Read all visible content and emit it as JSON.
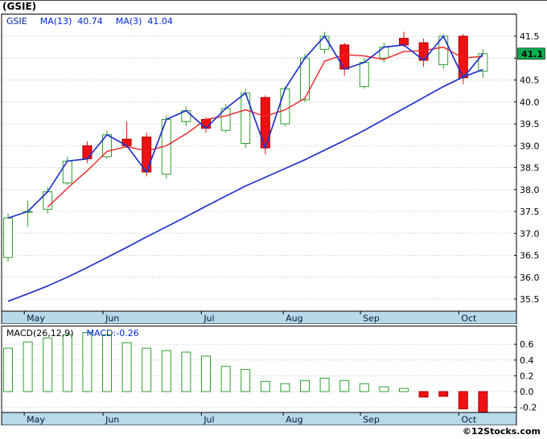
{
  "title": "(GSIE)",
  "legend": {
    "symbol": "GSIE",
    "ma13": "MA(13)  40.74",
    "ma3": "MA(3)  41.04"
  },
  "price_tag": {
    "value": "41.1"
  },
  "macd": {
    "label": "MACD(26,12,9)",
    "value": "MACD:-0.26"
  },
  "watermark": "©12Stocks.com",
  "colors": {
    "up": "#2e9e2e",
    "down": "#ee1111",
    "price_line": "#2233cc",
    "ma13": "#2233cc",
    "ma3": "#ee2222",
    "band": "#b8d9ea",
    "grid": "#c9c9c9",
    "tag_bg": "#00b050",
    "axis_text": "#000000",
    "month_text": "#001a33"
  },
  "chart_data": [
    {
      "type": "candlestick",
      "symbol": "GSIE",
      "ylabel_side": "right",
      "yticks": [
        41.5,
        41.0,
        40.5,
        40.0,
        39.5,
        39.0,
        38.5,
        38.0,
        37.5,
        37.0,
        36.5,
        36.0,
        35.5
      ],
      "ylim": [
        35.25,
        42.0
      ],
      "last_close": 41.1,
      "ma13_value": 40.74,
      "ma3_value": 41.04,
      "months": [
        {
          "label": "May",
          "f": 0.044
        },
        {
          "label": "Jun",
          "f": 0.197
        },
        {
          "label": "Jul",
          "f": 0.388
        },
        {
          "label": "Aug",
          "f": 0.547
        },
        {
          "label": "Sep",
          "f": 0.697
        },
        {
          "label": "Oct",
          "f": 0.888
        }
      ],
      "candles": [
        [
          36.45,
          37.45,
          36.35,
          37.35
        ],
        [
          37.5,
          37.75,
          37.15,
          37.5
        ],
        [
          37.55,
          38.05,
          37.45,
          37.95
        ],
        [
          38.15,
          38.75,
          38.1,
          38.65
        ],
        [
          39.0,
          39.1,
          38.6,
          38.7
        ],
        [
          38.75,
          39.35,
          38.7,
          39.25
        ],
        [
          39.15,
          39.55,
          38.95,
          39.0
        ],
        [
          39.2,
          39.3,
          38.3,
          38.4
        ],
        [
          38.35,
          39.7,
          38.25,
          39.6
        ],
        [
          39.55,
          39.9,
          39.45,
          39.8
        ],
        [
          39.6,
          39.65,
          39.3,
          39.4
        ],
        [
          39.35,
          39.95,
          39.3,
          39.85
        ],
        [
          39.05,
          40.3,
          38.95,
          40.2
        ],
        [
          40.1,
          40.15,
          38.8,
          38.95
        ],
        [
          39.5,
          40.35,
          39.45,
          40.3
        ],
        [
          40.05,
          41.1,
          40.0,
          41.0
        ],
        [
          41.2,
          41.6,
          41.1,
          41.5
        ],
        [
          41.3,
          41.35,
          40.6,
          40.75
        ],
        [
          40.35,
          41.0,
          40.3,
          40.9
        ],
        [
          41.0,
          41.35,
          40.9,
          41.25
        ],
        [
          41.45,
          41.6,
          41.25,
          41.3
        ],
        [
          41.35,
          41.45,
          40.8,
          40.95
        ],
        [
          40.85,
          41.55,
          40.75,
          41.5
        ],
        [
          41.5,
          41.55,
          40.4,
          40.55
        ],
        [
          40.7,
          41.2,
          40.55,
          41.1
        ]
      ],
      "ma13": [
        35.45,
        35.62,
        35.8,
        36.0,
        36.22,
        36.45,
        36.68,
        36.92,
        37.15,
        37.38,
        37.62,
        37.85,
        38.08,
        38.28,
        38.48,
        38.68,
        38.9,
        39.12,
        39.35,
        39.6,
        39.85,
        40.1,
        40.35,
        40.57,
        40.74
      ],
      "ma3": [
        null,
        null,
        37.6,
        38.03,
        38.43,
        38.87,
        38.98,
        38.88,
        39.0,
        39.27,
        39.6,
        39.68,
        39.82,
        39.67,
        39.82,
        40.08,
        40.93,
        41.08,
        41.05,
        40.97,
        41.15,
        41.17,
        41.25,
        41.0,
        41.04
      ]
    },
    {
      "type": "bar",
      "title": "MACD(26,12,9)",
      "last_value": -0.26,
      "yticks": [
        0.6,
        0.4,
        0.2,
        0.0,
        -0.2
      ],
      "ylim": [
        -0.29,
        0.82
      ],
      "months": [
        {
          "label": "May",
          "f": 0.044
        },
        {
          "label": "Jun",
          "f": 0.197
        },
        {
          "label": "Jul",
          "f": 0.388
        },
        {
          "label": "Aug",
          "f": 0.547
        },
        {
          "label": "Sep",
          "f": 0.697
        },
        {
          "label": "Oct",
          "f": 0.888
        }
      ],
      "values": [
        0.55,
        0.63,
        0.68,
        0.72,
        0.75,
        0.72,
        0.62,
        0.55,
        0.52,
        0.5,
        0.45,
        0.32,
        0.28,
        0.13,
        0.1,
        0.14,
        0.17,
        0.14,
        0.1,
        0.06,
        0.04,
        -0.07,
        -0.06,
        -0.22,
        -0.26
      ]
    }
  ]
}
